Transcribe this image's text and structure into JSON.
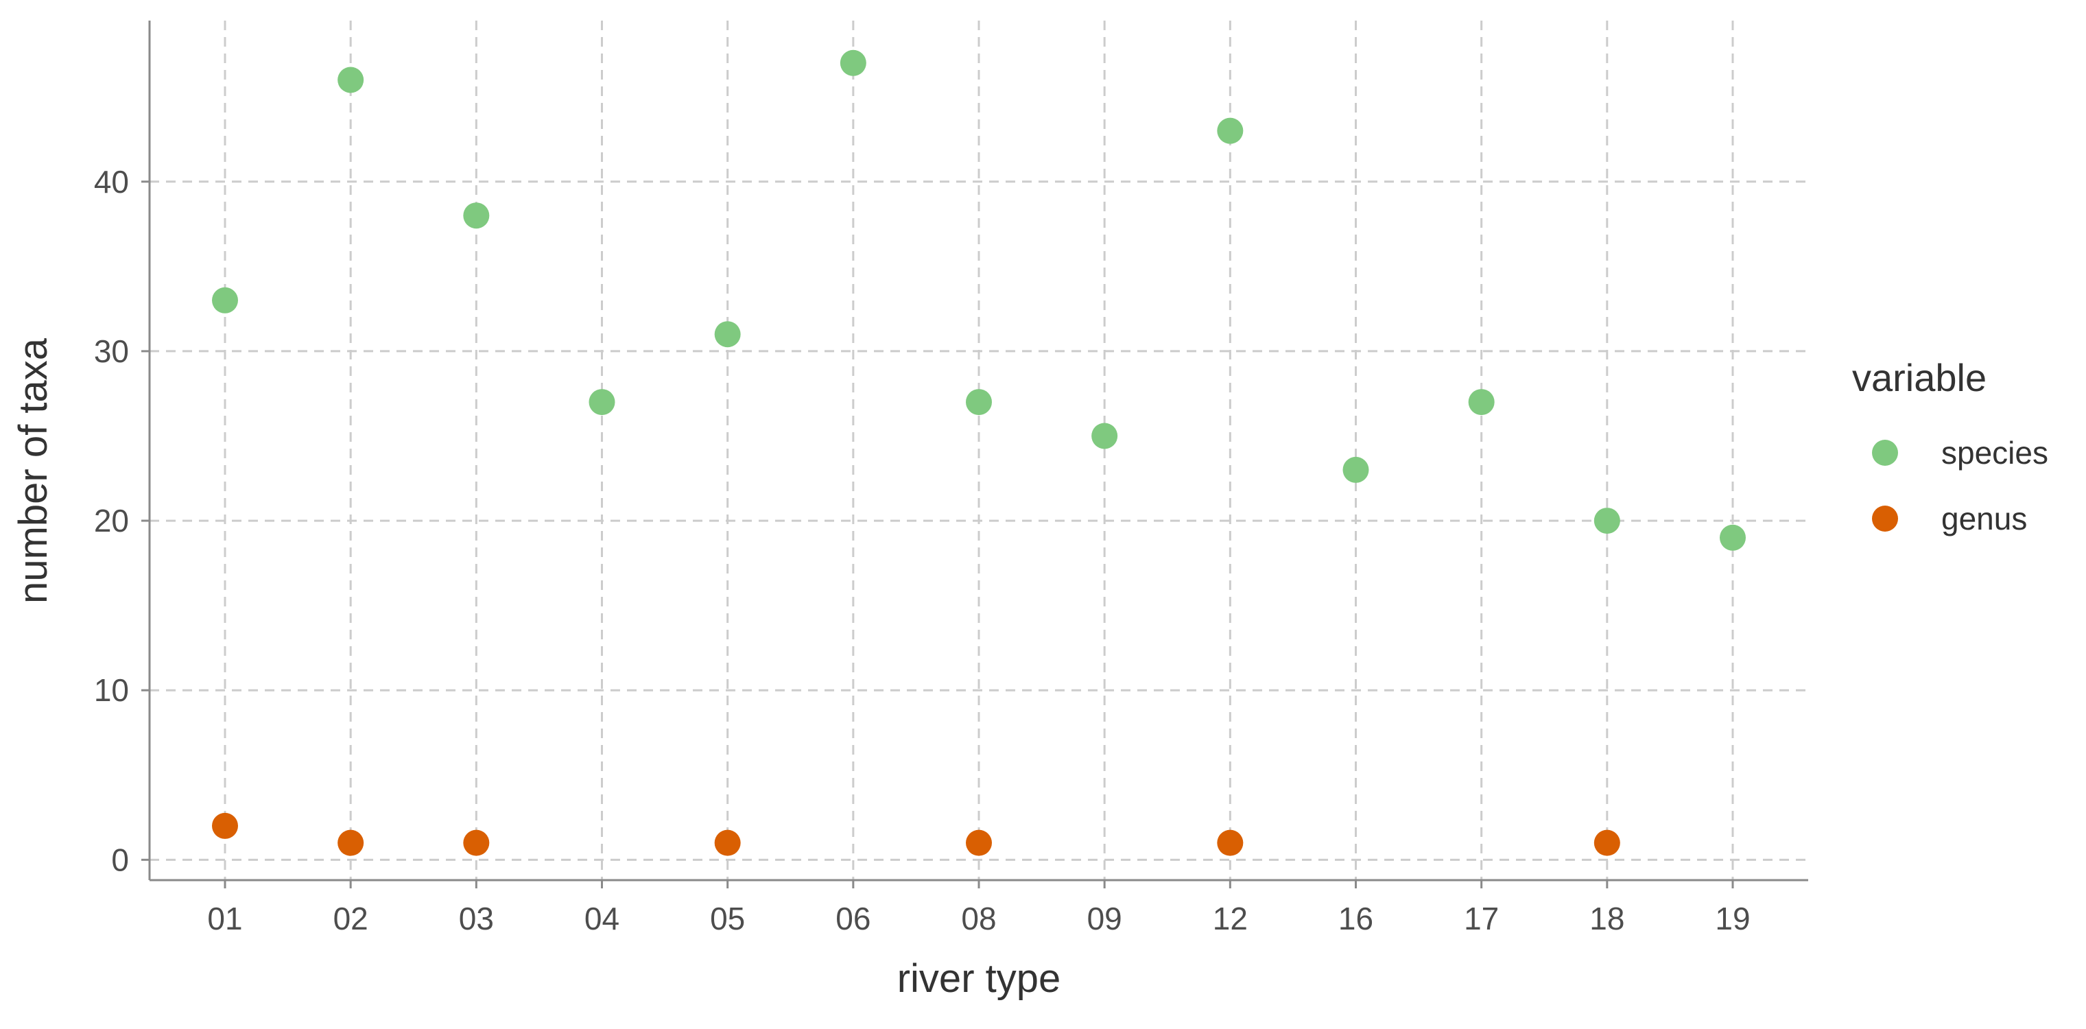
{
  "chart_data": {
    "type": "scatter",
    "title": "",
    "xlabel": "river type",
    "ylabel": "number of taxa",
    "categories": [
      "01",
      "02",
      "03",
      "04",
      "05",
      "06",
      "08",
      "09",
      "12",
      "16",
      "17",
      "18",
      "19"
    ],
    "ylim": [
      -1.2,
      49.5
    ],
    "yticks": [
      "0",
      "10",
      "20",
      "30",
      "40"
    ],
    "grid": true,
    "legend": {
      "title": "variable",
      "placement": "right"
    },
    "series": [
      {
        "name": "species",
        "color": "#7fc97f",
        "points": [
          {
            "x": "01",
            "y": 33
          },
          {
            "x": "02",
            "y": 46
          },
          {
            "x": "03",
            "y": 38
          },
          {
            "x": "04",
            "y": 27
          },
          {
            "x": "05",
            "y": 31
          },
          {
            "x": "06",
            "y": 47
          },
          {
            "x": "08",
            "y": 27
          },
          {
            "x": "09",
            "y": 25
          },
          {
            "x": "12",
            "y": 43
          },
          {
            "x": "16",
            "y": 23
          },
          {
            "x": "17",
            "y": 27
          },
          {
            "x": "18",
            "y": 20
          },
          {
            "x": "19",
            "y": 19
          }
        ]
      },
      {
        "name": "genus",
        "color": "#d95f02",
        "points": [
          {
            "x": "01",
            "y": 2
          },
          {
            "x": "02",
            "y": 1
          },
          {
            "x": "03",
            "y": 1
          },
          {
            "x": "05",
            "y": 1
          },
          {
            "x": "08",
            "y": 1
          },
          {
            "x": "12",
            "y": 1
          },
          {
            "x": "18",
            "y": 1
          }
        ]
      }
    ]
  }
}
